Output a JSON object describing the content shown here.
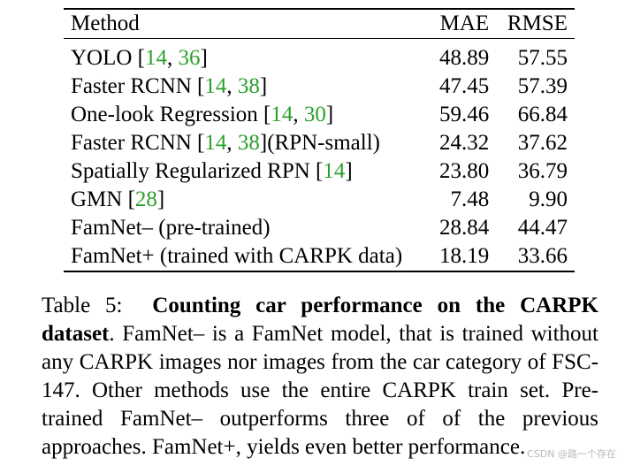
{
  "table": {
    "headers": [
      "Method",
      "MAE",
      "RMSE"
    ],
    "rows": [
      {
        "method": [
          {
            "t": "YOLO ["
          },
          {
            "t": "14",
            "cite": true
          },
          {
            "t": ", "
          },
          {
            "t": "36",
            "cite": true
          },
          {
            "t": "]"
          }
        ],
        "mae": "48.89",
        "rmse": "57.55"
      },
      {
        "method": [
          {
            "t": "Faster RCNN ["
          },
          {
            "t": "14",
            "cite": true
          },
          {
            "t": ", "
          },
          {
            "t": "38",
            "cite": true
          },
          {
            "t": "]"
          }
        ],
        "mae": "47.45",
        "rmse": "57.39"
      },
      {
        "method": [
          {
            "t": "One-look Regression ["
          },
          {
            "t": "14",
            "cite": true
          },
          {
            "t": ", "
          },
          {
            "t": "30",
            "cite": true
          },
          {
            "t": "]"
          }
        ],
        "mae": "59.46",
        "rmse": "66.84"
      },
      {
        "method": [
          {
            "t": "Faster RCNN ["
          },
          {
            "t": "14",
            "cite": true
          },
          {
            "t": ", "
          },
          {
            "t": "38",
            "cite": true
          },
          {
            "t": "](RPN-small)"
          }
        ],
        "mae": "24.32",
        "rmse": "37.62"
      },
      {
        "method": [
          {
            "t": "Spatially Regularized RPN ["
          },
          {
            "t": "14",
            "cite": true
          },
          {
            "t": "]"
          }
        ],
        "mae": "23.80",
        "rmse": "36.79"
      },
      {
        "method": [
          {
            "t": "GMN ["
          },
          {
            "t": "28",
            "cite": true
          },
          {
            "t": "]"
          }
        ],
        "mae": "7.48",
        "rmse": "9.90"
      },
      {
        "method": [
          {
            "t": "FamNet– (pre-trained)"
          }
        ],
        "mae": "28.84",
        "rmse": "44.47"
      },
      {
        "method": [
          {
            "t": "FamNet+ (trained with CARPK data)"
          }
        ],
        "mae": "18.19",
        "rmse": "33.66"
      }
    ]
  },
  "caption": {
    "label": "Table 5:",
    "bold": "Counting car performance on the CARPK dataset",
    "text": ". FamNet– is a FamNet model, that is trained without any CARPK images nor images from the car category of FSC-147. Other methods use the entire CARPK train set. Pre-trained FamNet– outperforms three of of the previous approaches. FamNet+, yields even better performance."
  },
  "watermark": "CSDN @路一个存在",
  "colors": {
    "citation": "#2ca02c"
  }
}
